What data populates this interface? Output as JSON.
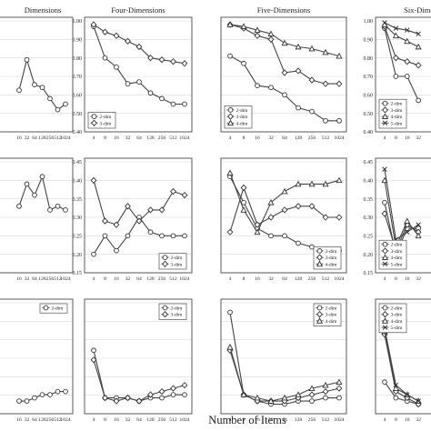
{
  "xlabel": "Number of Items",
  "chart_data": [
    {
      "type": "line",
      "title": "Dimensions",
      "ylim": [
        0.6,
        1.0
      ],
      "yticks": [],
      "x": [
        "16",
        "32",
        "64",
        "128",
        "256",
        "512",
        "1024"
      ],
      "legend": false,
      "series": [
        {
          "marker": "circle",
          "values": [
            0.75,
            0.86,
            0.77,
            0.76,
            0.72,
            0.68,
            0.7
          ]
        }
      ]
    },
    {
      "type": "line",
      "title": "Four-Dimensions",
      "ylim": [
        0.4,
        1.0
      ],
      "yticks": [
        "0.40",
        "0.50",
        "0.60",
        "0.70",
        "0.80",
        "0.90",
        "1.00"
      ],
      "x": [
        "4",
        "8",
        "16",
        "32",
        "64",
        "128",
        "256",
        "512",
        "1024"
      ],
      "legend": true,
      "legend_pos": "bottom-left",
      "series": [
        {
          "name": "2-dim",
          "marker": "circle",
          "values": [
            0.97,
            0.8,
            0.75,
            0.66,
            0.67,
            0.61,
            0.58,
            0.55,
            0.55
          ]
        },
        {
          "name": "3-dim",
          "marker": "diamond",
          "values": [
            0.98,
            0.94,
            0.92,
            0.89,
            0.86,
            0.8,
            0.79,
            0.78,
            0.77
          ]
        }
      ]
    },
    {
      "type": "line",
      "title": "Five-Dimensions",
      "ylim": [
        0.4,
        1.0
      ],
      "yticks": [],
      "x": [
        "4",
        "8",
        "16",
        "32",
        "64",
        "128",
        "256",
        "512",
        "1024"
      ],
      "legend": true,
      "legend_pos": "bottom-left",
      "series": [
        {
          "name": "2-dim",
          "marker": "circle",
          "values": [
            0.81,
            0.77,
            0.65,
            0.64,
            0.6,
            0.53,
            0.51,
            0.46,
            0.46
          ]
        },
        {
          "name": "3-dim",
          "marker": "diamond",
          "values": [
            0.98,
            0.96,
            0.92,
            0.9,
            0.72,
            0.73,
            0.68,
            0.66,
            0.66
          ]
        },
        {
          "name": "4-dim",
          "marker": "triangle",
          "values": [
            0.98,
            0.97,
            0.95,
            0.93,
            0.88,
            0.86,
            0.85,
            0.83,
            0.81
          ]
        }
      ]
    },
    {
      "type": "line",
      "title": "Six-Dimensions",
      "ylim": [
        0.4,
        1.0
      ],
      "yticks": [
        "0.40",
        "0.50",
        "0.60",
        "0.70",
        "0.80",
        "0.90",
        "1.00"
      ],
      "x": [
        "4",
        "8",
        "16",
        "32"
      ],
      "legend": true,
      "legend_pos": "bottom-left",
      "series": [
        {
          "name": "2-dim",
          "marker": "circle",
          "values": [
            0.96,
            0.7,
            0.7,
            0.57
          ]
        },
        {
          "name": "3-dim",
          "marker": "diamond",
          "values": [
            0.97,
            0.8,
            0.78,
            0.76
          ]
        },
        {
          "name": "4-dim",
          "marker": "triangle",
          "values": [
            0.98,
            0.92,
            0.89,
            0.86
          ]
        },
        {
          "name": "5-dim",
          "marker": "cross",
          "values": [
            0.99,
            0.96,
            0.95,
            0.93
          ]
        }
      ]
    },
    {
      "type": "line",
      "title": "",
      "ylim": [
        0.15,
        0.45
      ],
      "yticks": [],
      "x": [
        "16",
        "32",
        "64",
        "128",
        "256",
        "512",
        "1024"
      ],
      "legend": false,
      "series": [
        {
          "marker": "circle",
          "values": [
            0.33,
            0.39,
            0.36,
            0.41,
            0.32,
            0.33,
            0.32
          ]
        }
      ]
    },
    {
      "type": "line",
      "title": "",
      "ylim": [
        0.15,
        0.45
      ],
      "yticks": [
        "0.15",
        "0.20",
        "0.25",
        "0.30",
        "0.35",
        "0.40",
        "0.45"
      ],
      "x": [
        "4",
        "8",
        "16",
        "32",
        "64",
        "128",
        "256",
        "512",
        "1024"
      ],
      "legend": true,
      "legend_pos": "bottom-right",
      "series": [
        {
          "name": "2-dim",
          "marker": "circle",
          "values": [
            0.2,
            0.25,
            0.21,
            0.25,
            0.3,
            0.26,
            0.25,
            0.25,
            0.25
          ]
        },
        {
          "name": "3-dim",
          "marker": "diamond",
          "values": [
            0.4,
            0.29,
            0.28,
            0.33,
            0.29,
            0.32,
            0.32,
            0.37,
            0.36
          ]
        }
      ]
    },
    {
      "type": "line",
      "title": "",
      "ylim": [
        0.15,
        0.45
      ],
      "yticks": [],
      "x": [
        "4",
        "8",
        "16",
        "32",
        "64",
        "128",
        "256",
        "512",
        "1024"
      ],
      "legend": true,
      "legend_pos": "bottom-right",
      "series": [
        {
          "name": "2-dim",
          "marker": "circle",
          "values": [
            0.41,
            0.34,
            0.27,
            0.25,
            0.25,
            0.23,
            0.22,
            0.21,
            0.21
          ]
        },
        {
          "name": "3-dim",
          "marker": "diamond",
          "values": [
            0.26,
            0.38,
            0.28,
            0.3,
            0.32,
            0.33,
            0.33,
            0.3,
            0.3
          ]
        },
        {
          "name": "4-dim",
          "marker": "triangle",
          "values": [
            0.42,
            0.32,
            0.26,
            0.34,
            0.37,
            0.39,
            0.39,
            0.39,
            0.4
          ]
        }
      ]
    },
    {
      "type": "line",
      "title": "",
      "ylim": [
        0.15,
        0.45
      ],
      "yticks": [
        "0.15",
        "0.20",
        "0.25",
        "0.30",
        "0.35",
        "0.40",
        "0.45"
      ],
      "x": [
        "4",
        "8",
        "16",
        "32"
      ],
      "legend": true,
      "legend_pos": "bottom-right",
      "series": [
        {
          "name": "2-dim",
          "marker": "circle",
          "values": [
            0.34,
            0.2,
            0.27,
            0.27
          ]
        },
        {
          "name": "3-dim",
          "marker": "diamond",
          "values": [
            0.31,
            0.21,
            0.28,
            0.26
          ]
        },
        {
          "name": "4-dim",
          "marker": "triangle",
          "values": [
            0.4,
            0.22,
            0.29,
            0.25
          ]
        },
        {
          "name": "5-dim",
          "marker": "cross",
          "values": [
            0.43,
            0.24,
            0.26,
            0.28
          ]
        }
      ]
    },
    {
      "type": "line",
      "title": "",
      "ylim": [
        0.0,
        0.35
      ],
      "yticks": [],
      "x": [
        "16",
        "32",
        "64",
        "128",
        "256",
        "512",
        "1024"
      ],
      "legend": true,
      "legend_pos": "top-right",
      "series": [
        {
          "name": "2-dim",
          "marker": "circle",
          "values": [
            0.04,
            0.04,
            0.05,
            0.06,
            0.06,
            0.07,
            0.07
          ]
        }
      ]
    },
    {
      "type": "line",
      "title": "",
      "ylim": [
        0.0,
        0.35
      ],
      "yticks": [],
      "x": [
        "4",
        "8",
        "16",
        "32",
        "64",
        "128",
        "256",
        "512",
        "1024"
      ],
      "legend": true,
      "legend_pos": "top-right",
      "series": [
        {
          "name": "2-dim",
          "marker": "circle",
          "values": [
            0.2,
            0.05,
            0.05,
            0.05,
            0.04,
            0.05,
            0.05,
            0.06,
            0.06
          ]
        },
        {
          "name": "3-dim",
          "marker": "diamond",
          "values": [
            0.17,
            0.05,
            0.04,
            0.05,
            0.04,
            0.06,
            0.07,
            0.08,
            0.09
          ]
        }
      ]
    },
    {
      "type": "line",
      "title": "",
      "ylim": [
        0.0,
        0.35
      ],
      "yticks": [],
      "x": [
        "4",
        "8",
        "16",
        "32",
        "64",
        "128",
        "256",
        "512",
        "1024"
      ],
      "legend": true,
      "legend_pos": "top-right",
      "series": [
        {
          "name": "2-dim",
          "marker": "circle",
          "values": [
            0.32,
            0.06,
            0.04,
            0.03,
            0.03,
            0.04,
            0.04,
            0.05,
            0.05
          ]
        },
        {
          "name": "3-dim",
          "marker": "diamond",
          "values": [
            0.2,
            0.06,
            0.04,
            0.04,
            0.04,
            0.05,
            0.06,
            0.07,
            0.08
          ]
        },
        {
          "name": "4-dim",
          "marker": "triangle",
          "values": [
            0.21,
            0.06,
            0.05,
            0.04,
            0.05,
            0.06,
            0.08,
            0.09,
            0.1
          ]
        }
      ]
    },
    {
      "type": "line",
      "title": "",
      "ylim": [
        0.0,
        0.35
      ],
      "yticks": [],
      "x": [
        "4",
        "8",
        "16",
        "32"
      ],
      "legend": true,
      "legend_pos": "top-right",
      "series": [
        {
          "name": "2-dim",
          "marker": "circle",
          "values": [
            0.1,
            0.05,
            0.04,
            0.03
          ]
        },
        {
          "name": "3-dim",
          "marker": "diamond",
          "values": [
            0.25,
            0.07,
            0.05,
            0.03
          ]
        },
        {
          "name": "4-dim",
          "marker": "triangle",
          "values": [
            0.26,
            0.08,
            0.06,
            0.04
          ]
        },
        {
          "name": "5-dim",
          "marker": "cross",
          "values": [
            0.27,
            0.09,
            0.06,
            0.04
          ]
        }
      ]
    }
  ]
}
